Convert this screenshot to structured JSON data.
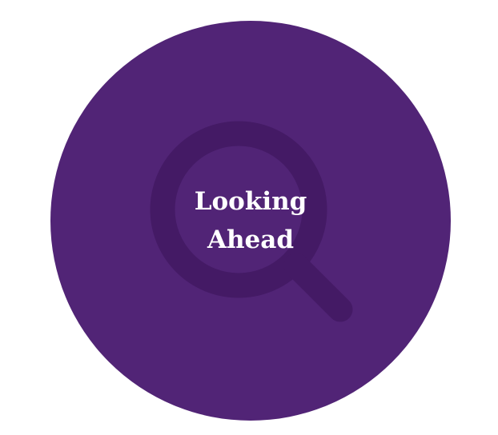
{
  "badge": {
    "title_line_1": "Looking",
    "title_line_2": "Ahead",
    "icon": "magnifying-glass-icon",
    "colors": {
      "circle": "#512476",
      "icon": "#441a65",
      "text": "#ffffff",
      "background": "#ffffff"
    }
  }
}
